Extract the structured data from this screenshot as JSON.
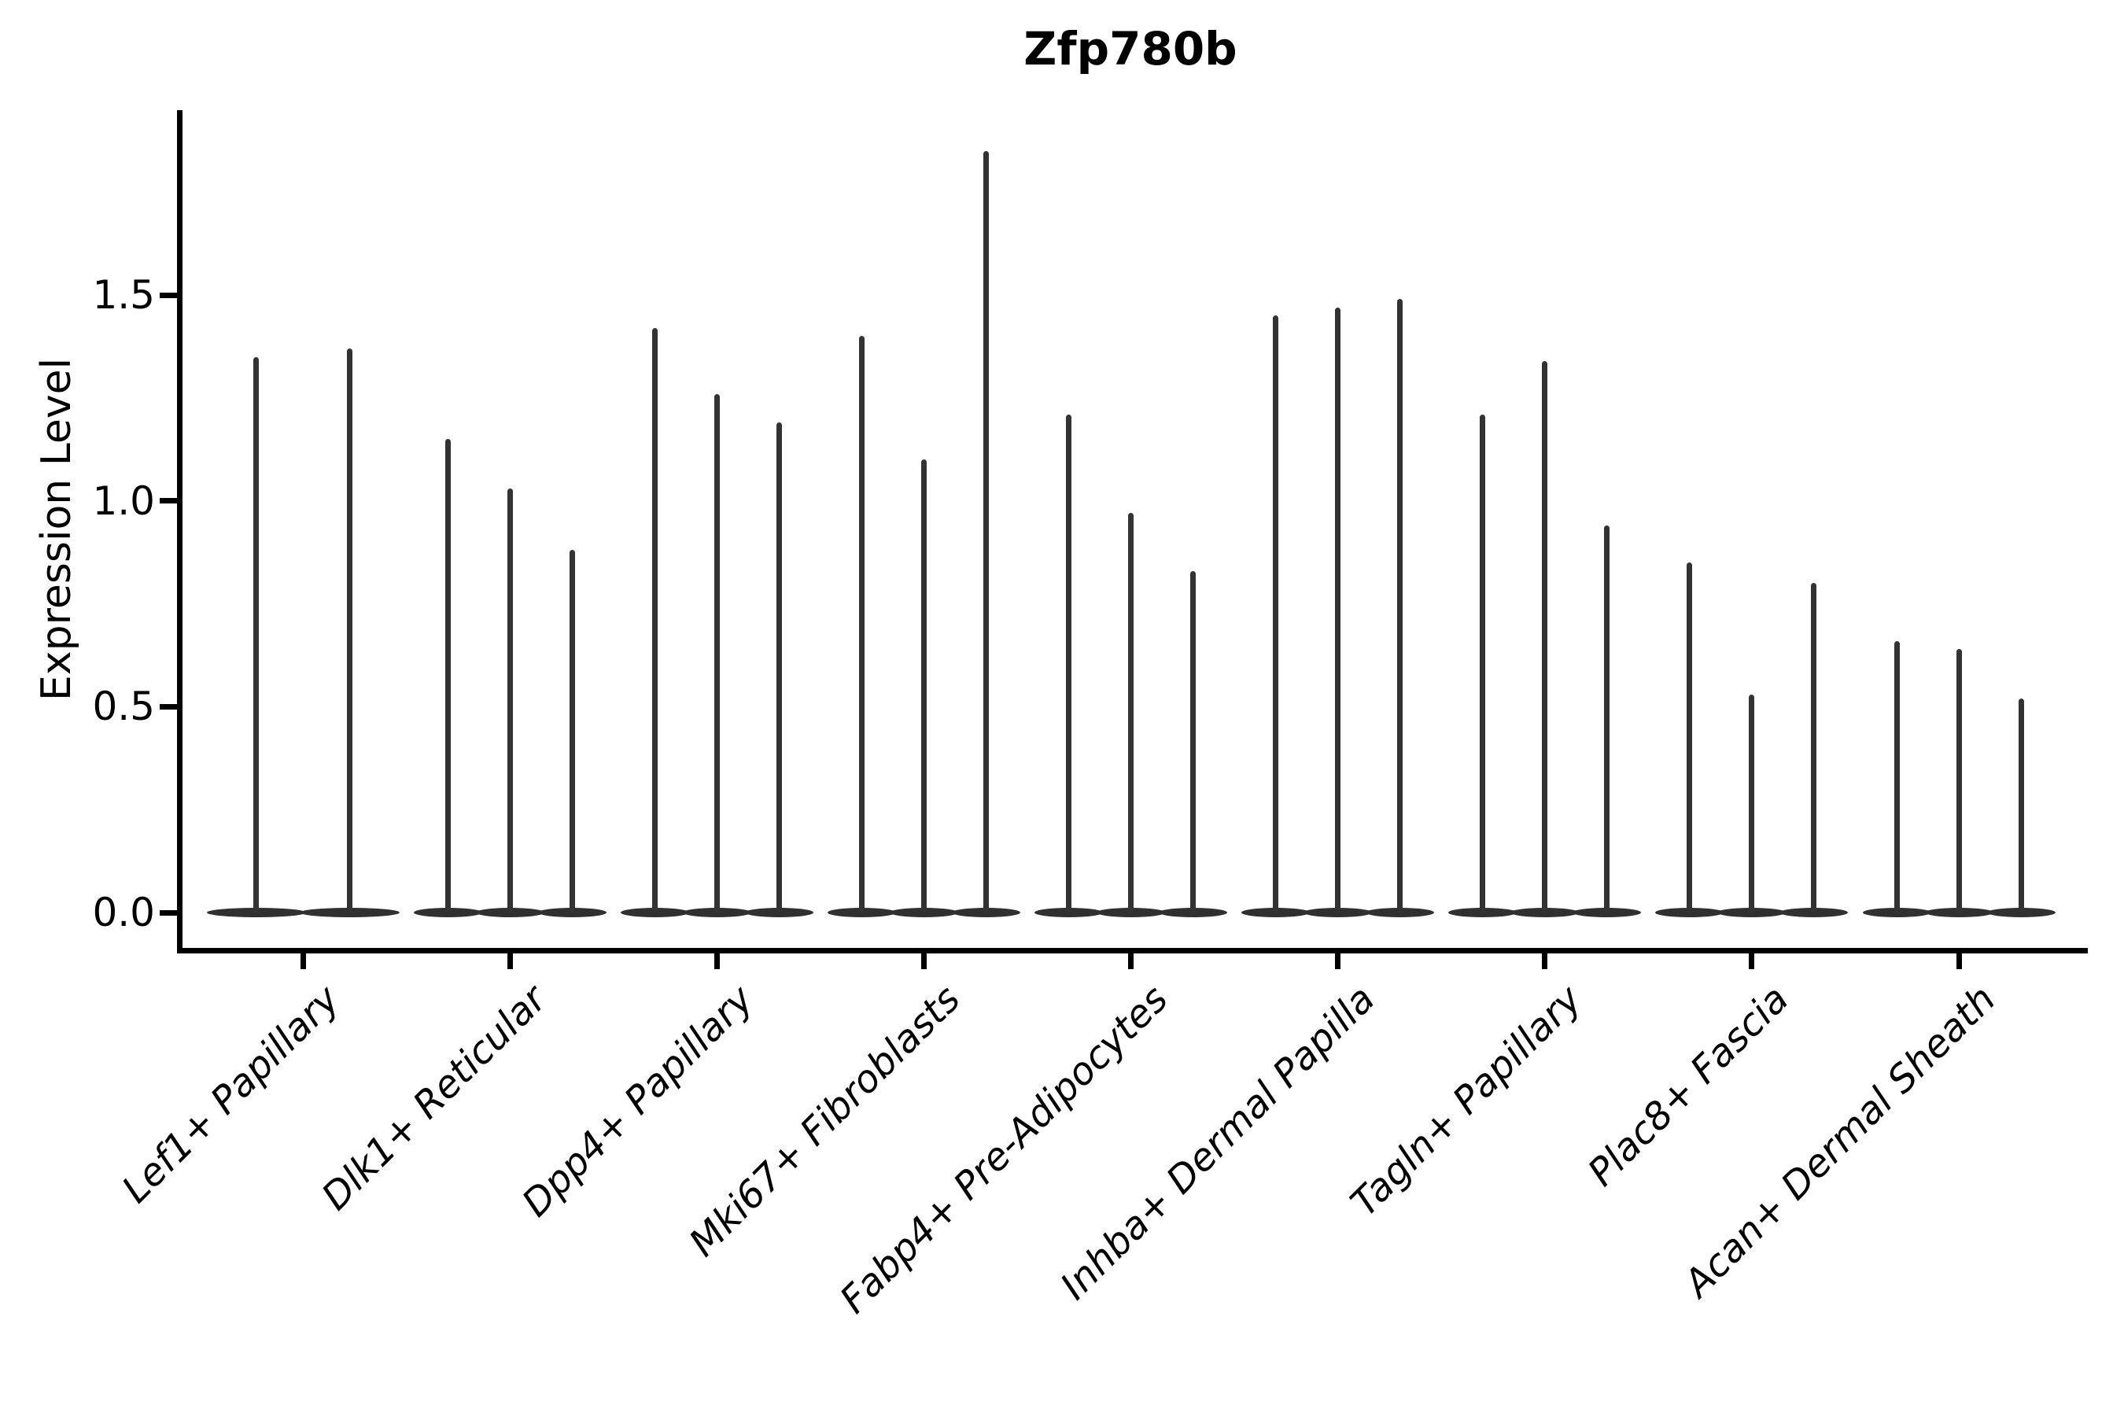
{
  "figure": {
    "title": "Zfp780b"
  },
  "axes": {
    "ylabel": "Expression Level",
    "xlabel": ""
  },
  "chart_data": {
    "type": "violin",
    "title": "Zfp780b",
    "xlabel": "",
    "ylabel": "Expression Level",
    "ylim": [
      -0.09,
      1.95
    ],
    "yticks": [
      "0.0",
      "0.5",
      "1.0",
      "1.5"
    ],
    "ytick_values": [
      0.0,
      0.5,
      1.0,
      1.5
    ],
    "grid": false,
    "legend_position": "none",
    "baseline_value": 0.0,
    "categories": [
      "Lef1+ Papillary",
      "Dlk1+ Reticular",
      "Dpp4+ Papillary",
      "Mki67+ Fibroblasts",
      "Fabp4+ Pre-Adipocytes",
      "Inhba+ Dermal Papilla",
      "Tagln+ Papillary",
      "Plac8+ Fascia",
      "Acan+ Dermal Sheath"
    ],
    "groups": [
      {
        "category": "Lef1+ Papillary",
        "violin_max_values": [
          1.35,
          1.37
        ]
      },
      {
        "category": "Dlk1+ Reticular",
        "violin_max_values": [
          1.15,
          1.03,
          0.88
        ]
      },
      {
        "category": "Dpp4+ Papillary",
        "violin_max_values": [
          1.42,
          1.26,
          1.19
        ]
      },
      {
        "category": "Mki67+ Fibroblasts",
        "violin_max_values": [
          1.4,
          1.1,
          1.85
        ]
      },
      {
        "category": "Fabp4+ Pre-Adipocytes",
        "violin_max_values": [
          1.21,
          0.97,
          0.83
        ]
      },
      {
        "category": "Inhba+ Dermal Papilla",
        "violin_max_values": [
          1.45,
          1.47,
          1.49
        ]
      },
      {
        "category": "Tagln+ Papillary",
        "violin_max_values": [
          1.21,
          1.34,
          0.94
        ]
      },
      {
        "category": "Plac8+ Fascia",
        "violin_max_values": [
          0.85,
          0.53,
          0.8
        ]
      },
      {
        "category": "Acan+ Dermal Sheath",
        "violin_max_values": [
          0.66,
          0.64,
          0.52
        ]
      }
    ],
    "colors": {
      "violin": "#333333",
      "violin_base": "#303030",
      "axis": "#000000",
      "background": "#ffffff",
      "text": "#000000"
    }
  }
}
